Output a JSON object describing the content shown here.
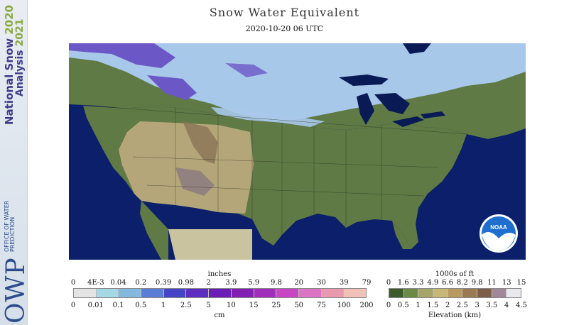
{
  "branding": {
    "product_line1": "National Snow",
    "year1": "2020",
    "product_line2": "Analysis",
    "year2": "2021",
    "owp_letters": "OWP",
    "owp_name": "OFFICE OF WATER PREDICTION",
    "noaa_logo": "NOAA"
  },
  "title": "Snow Water Equivalent",
  "timestamp": "2020-10-20 06 UTC",
  "colors": {
    "ocean": "#0b1f6a",
    "land_green": "#5f7a45",
    "land_tan": "#b5a67a",
    "snow_light": "#a8c8ea",
    "snow_deep": "#6c57c6",
    "lake": "#0a1a55",
    "mexico_mask": "#c9c3a0"
  },
  "legend_swe": {
    "unit_top": "inches",
    "unit_bottom": "cm",
    "inches_labels": [
      "0",
      "4E-3",
      "0.04",
      "0.2",
      "0.39",
      "0.98",
      "2",
      "3.9",
      "5.9",
      "9.8",
      "20",
      "30",
      "39",
      "79"
    ],
    "cm_labels": [
      "0",
      "0.01",
      "0.1",
      "0.5",
      "1",
      "2.5",
      "5",
      "10",
      "15",
      "25",
      "50",
      "75",
      "100",
      "200"
    ],
    "colors": [
      "#e4e4e4",
      "#a4d8e4",
      "#84b8de",
      "#5a7ed6",
      "#4645c8",
      "#5c2ec2",
      "#6a1fb6",
      "#8220b4",
      "#a22cbc",
      "#c846c4",
      "#dc74c4",
      "#e89ab0",
      "#f0c2b8"
    ]
  },
  "legend_elev": {
    "unit_top": "1000s of ft",
    "unit_bottom": "Elevation (km)",
    "ft_labels": [
      "0",
      "1.6",
      "3.3",
      "4.9",
      "6.6",
      "8.2",
      "9.8",
      "11",
      "13",
      "15"
    ],
    "km_labels": [
      "0",
      "0.5",
      "1",
      "1.5",
      "2",
      "2.5",
      "3",
      "3.5",
      "4",
      "4.5"
    ],
    "colors": [
      "#3d5a2c",
      "#6c8a46",
      "#a6a468",
      "#c8b878",
      "#b89a60",
      "#9a7a52",
      "#7e5e48",
      "#a08898",
      "#e8e8ee"
    ]
  }
}
